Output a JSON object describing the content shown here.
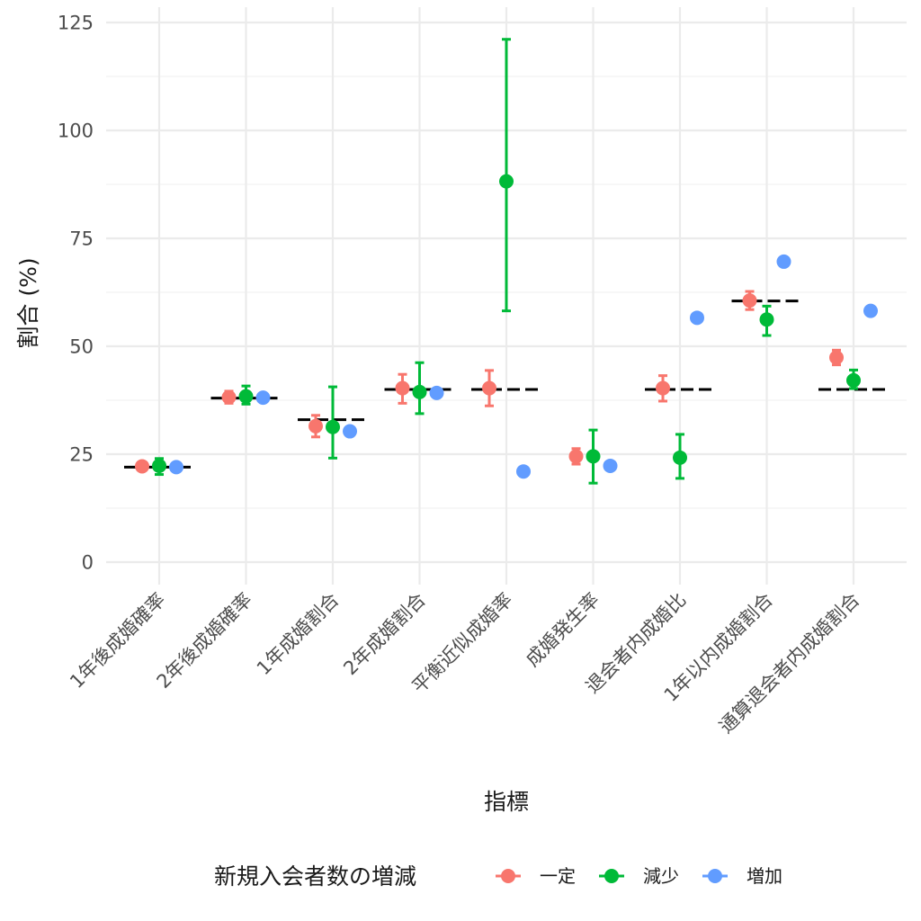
{
  "chart_data": {
    "type": "scatter",
    "xlabel": "指標",
    "ylabel": "割合 (%)",
    "ylim": [
      -5,
      127
    ],
    "yticks": [
      0,
      25,
      50,
      75,
      100,
      125
    ],
    "categories": [
      "1年後成婚確率",
      "2年後成婚確率",
      "1年成婚割合",
      "2年成婚割合",
      "平衡近似成婚率",
      "成婚発生率",
      "退会者内成婚比",
      "1年以内成婚割合",
      "通算退会者内成婚割合"
    ],
    "legend": {
      "title": "新規入会者数の増減",
      "position": "bottom"
    },
    "grid": true,
    "reference_line": {
      "style": "dashed",
      "color": "#000000",
      "values": [
        22,
        38,
        33,
        40,
        40,
        null,
        40,
        60.5,
        40
      ]
    },
    "series": [
      {
        "name": "一定",
        "color": "#F8766D",
        "values": [
          22.2,
          38.2,
          31.5,
          40.3,
          40.3,
          24.5,
          40.3,
          60.6,
          47.4
        ],
        "err_low": [
          21.8,
          36.8,
          29.0,
          36.8,
          36.2,
          22.7,
          37.3,
          58.5,
          45.7
        ],
        "err_high": [
          22.6,
          39.6,
          34.0,
          43.5,
          44.4,
          26.3,
          43.2,
          62.7,
          49.1
        ]
      },
      {
        "name": "減少",
        "color": "#00BA38",
        "values": [
          22.3,
          38.4,
          31.3,
          39.4,
          88.2,
          24.5,
          24.2,
          56.2,
          42.1
        ],
        "err_low": [
          20.3,
          36.6,
          24.1,
          34.4,
          58.2,
          18.3,
          19.4,
          52.5,
          40.2
        ],
        "err_high": [
          24.0,
          40.8,
          40.6,
          46.2,
          121.1,
          30.6,
          29.6,
          59.3,
          44.5
        ]
      },
      {
        "name": "増加",
        "color": "#619CFF",
        "values": [
          22.0,
          38.1,
          30.3,
          39.2,
          21.0,
          22.3,
          56.6,
          69.6,
          58.2
        ],
        "err_low": [
          null,
          null,
          null,
          null,
          null,
          null,
          null,
          null,
          null
        ],
        "err_high": [
          null,
          null,
          null,
          null,
          null,
          null,
          null,
          null,
          null
        ]
      }
    ]
  }
}
